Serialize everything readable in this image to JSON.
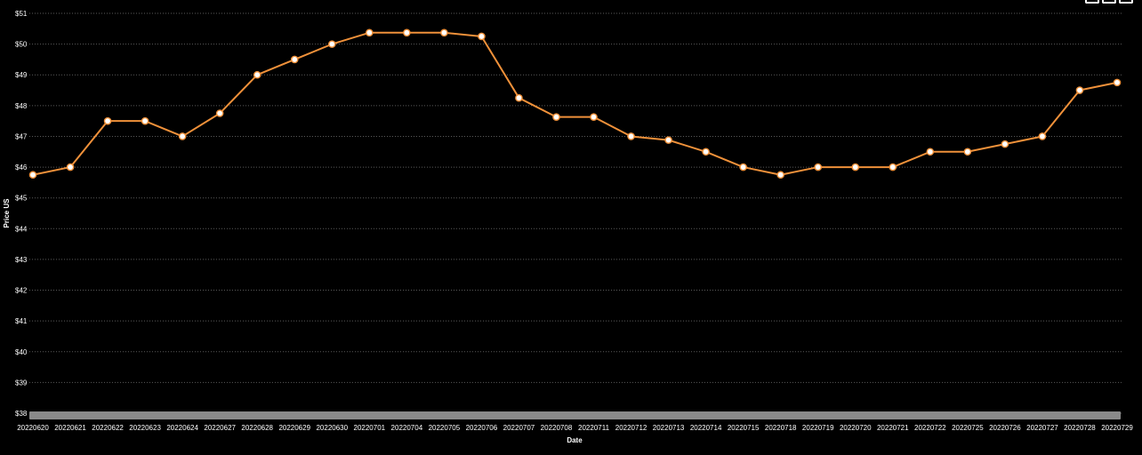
{
  "colors": {
    "background": "#000000",
    "line": "#f0913a",
    "grid": "#5a5a5a",
    "scrollbar": "#8a8a8a"
  },
  "toolbar": {
    "icons": [
      "zoom-icon",
      "pan-icon",
      "reset-icon"
    ]
  },
  "chart_data": {
    "type": "line",
    "title": "",
    "xlabel": "Date",
    "ylabel": "Price US",
    "ylim": [
      38,
      51
    ],
    "y_tick_labels": [
      "$38",
      "$39",
      "$40",
      "$41",
      "$42",
      "$43",
      "$44",
      "$45",
      "$46",
      "$47",
      "$48",
      "$49",
      "$50",
      "$51"
    ],
    "grid": true,
    "categories": [
      "20220620",
      "20220621",
      "20220622",
      "20220623",
      "20220624",
      "20220627",
      "20220628",
      "20220629",
      "20220630",
      "20220701",
      "20220704",
      "20220705",
      "20220706",
      "20220707",
      "20220708",
      "20220711",
      "20220712",
      "20220713",
      "20220714",
      "20220715",
      "20220718",
      "20220719",
      "20220720",
      "20220721",
      "20220722",
      "20220725",
      "20220726",
      "20220727",
      "20220728",
      "20220729"
    ],
    "series": [
      {
        "values": [
          45.75,
          46,
          47.5,
          47.5,
          47,
          47.75,
          49,
          49.5,
          50,
          50.37,
          50.37,
          50.37,
          50.25,
          48.25,
          47.63,
          47.63,
          47,
          46.88,
          46.5,
          46,
          45.75,
          46,
          46,
          46,
          46.5,
          46.5,
          46.75,
          47,
          48.5,
          48.75
        ]
      }
    ]
  }
}
